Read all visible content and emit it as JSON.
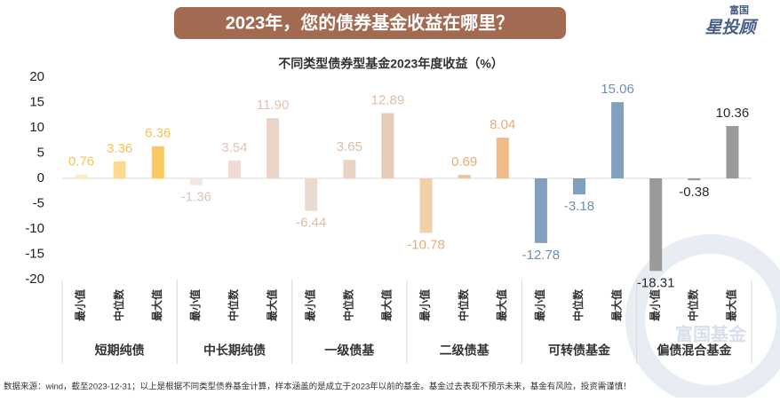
{
  "banner": "2023年，您的债券基金收益在哪里？",
  "logo": {
    "top": "富国",
    "main": "星投顾"
  },
  "watermark": "富国基金",
  "footnote": "数据来源：wind，截至2023-12-31；以上是根据不同类型债券基金计算，样本涵盖的是成立于2023年以前的基金。基金过去表现不预示未来，基金有风险，投资需谨慎！",
  "chart_data": {
    "type": "grouped_bar",
    "title": "不同类型债券型基金2023年度收益（%）",
    "sub_categories": [
      "最小值",
      "中位数",
      "最大值"
    ],
    "groups": [
      {
        "name": "短期纯债",
        "values": [
          0.76,
          3.36,
          6.36
        ],
        "colors": [
          "#fdebc6",
          "#fcd98f",
          "#f9ca62"
        ],
        "label_color": "#f6c452"
      },
      {
        "name": "中长期纯债",
        "values": [
          -1.36,
          3.54,
          11.9
        ],
        "value_labels": [
          "-1.36",
          "3.54",
          "11.90"
        ],
        "colors": [
          "#f3e6e0",
          "#efdcd2",
          "#ead3c7"
        ],
        "label_color": "#dfc3b3"
      },
      {
        "name": "一级债基",
        "values": [
          -6.44,
          3.65,
          12.89
        ],
        "colors": [
          "#eadbd0",
          "#e8d3c4",
          "#e5cbb8"
        ],
        "label_color": "#d9bea9"
      },
      {
        "name": "二级债基",
        "values": [
          -10.78,
          0.69,
          8.04
        ],
        "colors": [
          "#f3cfa9",
          "#f0c49a",
          "#eebb89"
        ],
        "label_color": "#e5ad78"
      },
      {
        "name": "可转债基金",
        "values": [
          -12.78,
          -3.18,
          15.06
        ],
        "colors": [
          "#819fbe",
          "#819fbe",
          "#819fbe"
        ],
        "label_color": "#6f8fb0"
      },
      {
        "name": "偏债混合基金",
        "values": [
          -18.31,
          -0.38,
          10.36
        ],
        "colors": [
          "#9a9a9a",
          "#9a9a9a",
          "#9a9a9a"
        ],
        "label_color": "#2b2b2b"
      }
    ],
    "ylim": [
      -20,
      20
    ],
    "yticks": [
      -20,
      -15,
      -10,
      -5,
      0,
      5,
      10,
      15,
      20
    ]
  }
}
